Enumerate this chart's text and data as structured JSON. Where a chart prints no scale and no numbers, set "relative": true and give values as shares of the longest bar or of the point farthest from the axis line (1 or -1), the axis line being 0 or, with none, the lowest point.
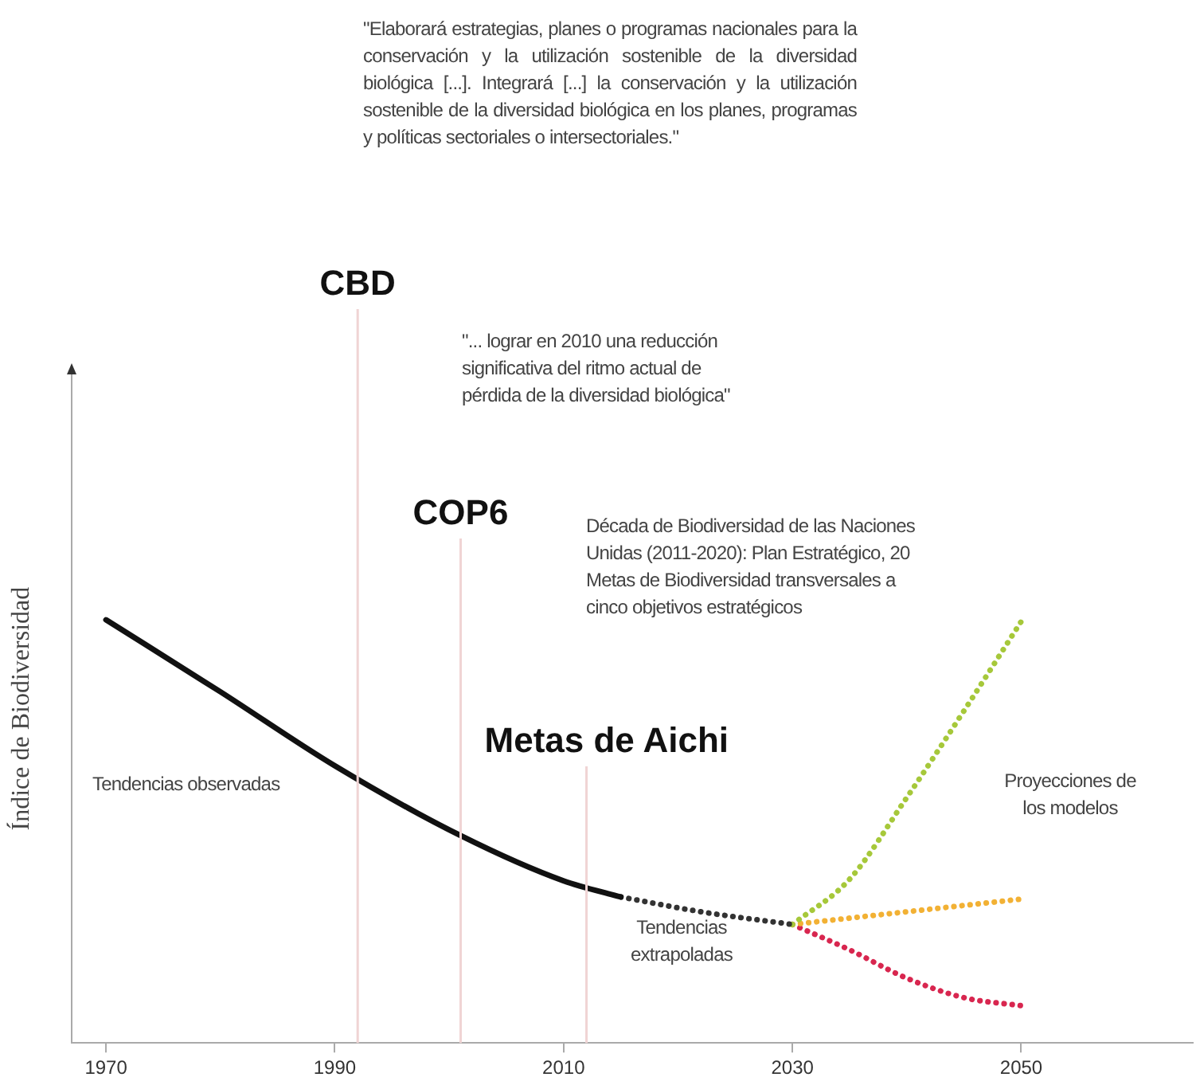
{
  "chart_data": {
    "type": "line",
    "relative": true,
    "ylabel": "Índice de Biodiversidad",
    "xlim": [
      1967,
      2065
    ],
    "xticks": [
      1970,
      1990,
      2010,
      2030,
      2050
    ],
    "grid": false,
    "legend": false,
    "series": [
      {
        "color": "#111111",
        "line_style": "solid",
        "x": [
          1970,
          1980,
          1990,
          2001,
          2010,
          2015
        ],
        "values": [
          1.0,
          0.83,
          0.655,
          0.49,
          0.383,
          0.345
        ]
      },
      {
        "color": "#333333",
        "line_style": "dotted",
        "x": [
          2015,
          2022,
          2030
        ],
        "values": [
          0.345,
          0.31,
          0.28
        ]
      },
      {
        "color": "#a6c83a",
        "line_style": "dotted",
        "x": [
          2030,
          2035,
          2040,
          2045,
          2050
        ],
        "values": [
          0.28,
          0.387,
          0.58,
          0.785,
          0.996
        ]
      },
      {
        "color": "#f2b134",
        "line_style": "dotted",
        "x": [
          2030,
          2040,
          2050
        ],
        "values": [
          0.28,
          0.31,
          0.34
        ]
      },
      {
        "color": "#d8264f",
        "line_style": "dotted",
        "x": [
          2030,
          2035,
          2040,
          2045,
          2050
        ],
        "values": [
          0.28,
          0.22,
          0.153,
          0.107,
          0.088
        ]
      }
    ],
    "ref_lines": [
      {
        "axis": "x",
        "value": 1992,
        "label": "CBD",
        "color": "#f0d4d4"
      },
      {
        "axis": "x",
        "value": 2001,
        "label": "COP6",
        "color": "#f0d4d4"
      },
      {
        "axis": "x",
        "value": 2012,
        "label": "Metas de Aichi",
        "color": "#f0d4d4"
      }
    ],
    "annotations": [
      "\"Elaborará estrategias, planes o programas nacionales para la conservación y la utilización sostenible de la diversidad biológica [...]. Integrará [...] la conservación y la utilización sostenible de la diversidad biológica en los planes, programas y políticas sectoriales o intersectoriales.\"",
      "\"... lograr en 2010 una reducción significativa del ritmo actual de pérdida de la diversidad biológica\"",
      "Década de Biodiversidad de las Naciones Unidas (2011-2020): Plan Estratégico, 20 Metas de Biodiversidad transversales a cinco objetivos estratégicos",
      "Tendencias observadas",
      "Tendencias\nextrapoladas",
      "Proyecciones de\nlos modelos"
    ]
  }
}
